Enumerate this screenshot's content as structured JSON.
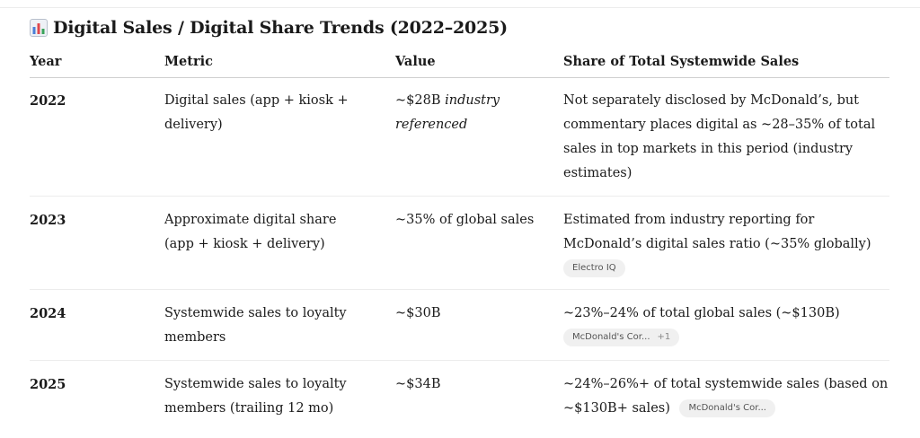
{
  "heading": {
    "icon": "bar-chart-icon",
    "title": "Digital Sales / Digital Share Trends (2022–2025)"
  },
  "table": {
    "headers": [
      "Year",
      "Metric",
      "Value",
      "Share of Total Systemwide Sales"
    ],
    "rows": [
      {
        "year": "2022",
        "metric": "Digital sales (app + kiosk + delivery)",
        "value": "~$28B",
        "value_note": "industry referenced",
        "share": "Not separately disclosed by McDonald’s, but commentary places digital as ~28–35% of total sales in top markets in this period (industry estimates)"
      },
      {
        "year": "2023",
        "metric": "Approximate digital share (app + kiosk + delivery)",
        "value": "~35% of global sales",
        "share": "Estimated from industry reporting for McDonald’s digital sales ratio (~35% globally)",
        "source": "Electro IQ"
      },
      {
        "year": "2024",
        "metric": "Systemwide sales to loyalty members",
        "value": "~$30B",
        "share": "~23%–24% of total global sales (~$130B)",
        "source": "McDonald's Cor...",
        "source_more": "+1"
      },
      {
        "year": "2025",
        "metric": "Systemwide sales to loyalty members (trailing 12 mo)",
        "value": "~$34B",
        "share": "~24%–26%+ of total systemwide sales (based on ~$130B+ sales)",
        "source": "McDonald's Cor..."
      }
    ]
  }
}
